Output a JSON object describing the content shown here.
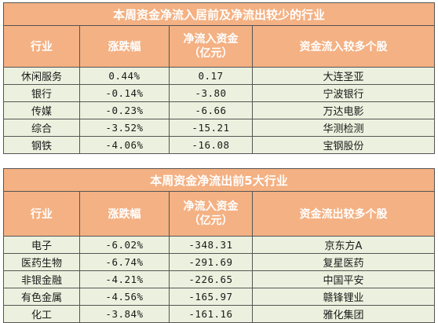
{
  "table1": {
    "title": "本周资金净流入居前及净流出较少的行业",
    "headers": [
      "行业",
      "涨跌幅",
      "净流入资金",
      "（亿元）",
      "资金流入较多个股"
    ],
    "rows": [
      [
        "休闲服务",
        "0.44%",
        "0.17",
        "大连圣亚"
      ],
      [
        "银行",
        "-0.14%",
        "-3.80",
        "宁波银行"
      ],
      [
        "传媒",
        "-0.23%",
        "-6.66",
        "万达电影"
      ],
      [
        "综合",
        "-3.52%",
        "-15.21",
        "华测检测"
      ],
      [
        "钢铁",
        "-4.06%",
        "-16.08",
        "宝钢股份"
      ]
    ]
  },
  "table2": {
    "title": "本周资金净流出前5大行业",
    "headers": [
      "行业",
      "涨跌幅",
      "净流入资金",
      "（亿元）",
      "资金流出较多个股"
    ],
    "rows": [
      [
        "电子",
        "-6.02%",
        "-348.31",
        "京东方A"
      ],
      [
        "医药生物",
        "-6.74%",
        "-291.69",
        "复星医药"
      ],
      [
        "非银金融",
        "-4.21%",
        "-226.65",
        "中国平安"
      ],
      [
        "有色金属",
        "-4.56%",
        "-165.97",
        "赣锋锂业"
      ],
      [
        "化工",
        "-3.84%",
        "-161.16",
        "雅化集团"
      ]
    ]
  },
  "colors": {
    "header_bg": "#f4b183",
    "cell_bg": "#ebf1de",
    "border": "#555555"
  }
}
